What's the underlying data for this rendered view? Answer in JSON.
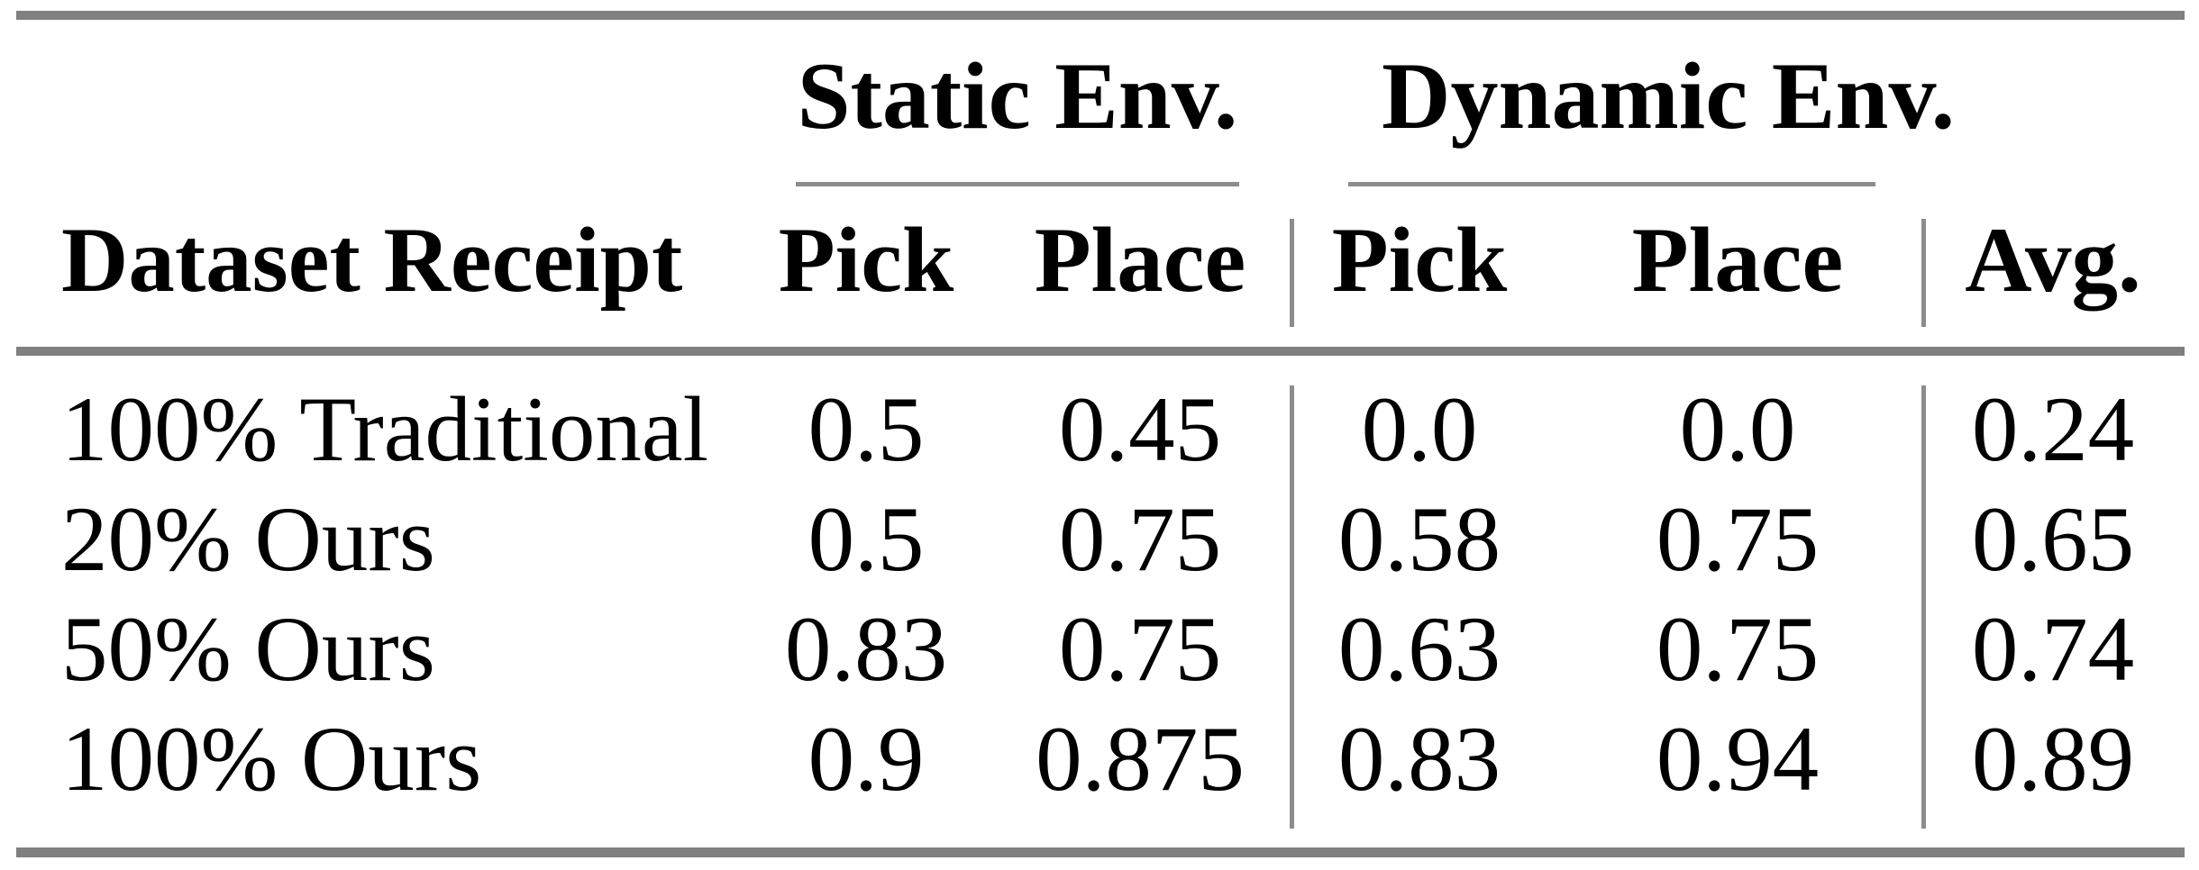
{
  "table": {
    "groups": [
      {
        "label": "Static Env."
      },
      {
        "label": "Dynamic Env."
      }
    ],
    "headers": {
      "dataset": "Dataset Receipt",
      "static_pick": "Pick",
      "static_place": "Place",
      "dynamic_pick": "Pick",
      "dynamic_place": "Place",
      "avg": "Avg."
    },
    "rows": [
      {
        "dataset": "100% Traditional",
        "static_pick": "0.5",
        "static_place": "0.45",
        "dynamic_pick": "0.0",
        "dynamic_place": "0.0",
        "avg": "0.24"
      },
      {
        "dataset": "20% Ours",
        "static_pick": "0.5",
        "static_place": "0.75",
        "dynamic_pick": "0.58",
        "dynamic_place": "0.75",
        "avg": "0.65"
      },
      {
        "dataset": "50% Ours",
        "static_pick": "0.83",
        "static_place": "0.75",
        "dynamic_pick": "0.63",
        "dynamic_place": "0.75",
        "avg": "0.74"
      },
      {
        "dataset": "100% Ours",
        "static_pick": "0.9",
        "static_place": "0.875",
        "dynamic_pick": "0.83",
        "dynamic_place": "0.94",
        "avg": "0.89"
      }
    ],
    "colors": {
      "thick_rule": "#808080",
      "thin_rule": "#8c8c8c",
      "text": "#000000",
      "background": "#ffffff"
    }
  },
  "chart_data": {
    "type": "table",
    "title": "",
    "column_groups": [
      "Static Env.",
      "Dynamic Env."
    ],
    "columns": [
      "Dataset Receipt",
      "Static Env. Pick",
      "Static Env. Place",
      "Dynamic Env. Pick",
      "Dynamic Env. Place",
      "Avg."
    ],
    "rows": [
      [
        "100% Traditional",
        0.5,
        0.45,
        0.0,
        0.0,
        0.24
      ],
      [
        "20% Ours",
        0.5,
        0.75,
        0.58,
        0.75,
        0.65
      ],
      [
        "50% Ours",
        0.83,
        0.75,
        0.63,
        0.75,
        0.74
      ],
      [
        "100% Ours",
        0.9,
        0.875,
        0.83,
        0.94,
        0.89
      ]
    ]
  }
}
